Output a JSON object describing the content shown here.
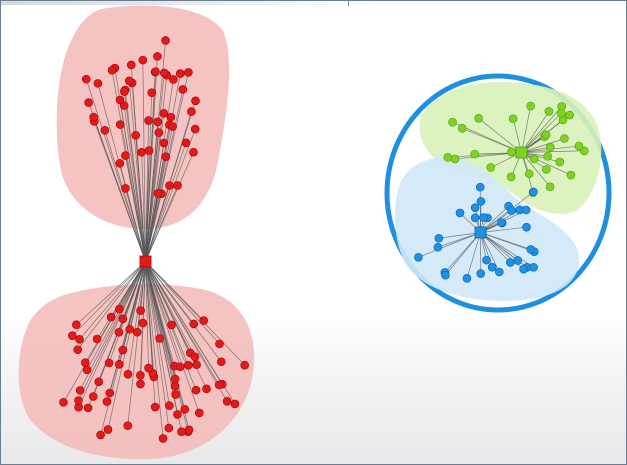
{
  "figure": {
    "left_network": {
      "hub_color": "#e31a1c",
      "node_color": "#e31a1c",
      "edge_color": "#555555",
      "cluster_fill": "#f3b9b6",
      "top_cluster_nodes": 52,
      "bottom_cluster_nodes": 68
    },
    "right_network": {
      "boundary_color": "#1f8fe0",
      "cluster_a": {
        "node_color": "#7ed321",
        "fill": "#d9f2b8",
        "nodes": 30
      },
      "cluster_b": {
        "node_color": "#1e90e6",
        "fill": "#cfe8f8",
        "nodes": 32
      },
      "edge_color": "#555555"
    }
  }
}
